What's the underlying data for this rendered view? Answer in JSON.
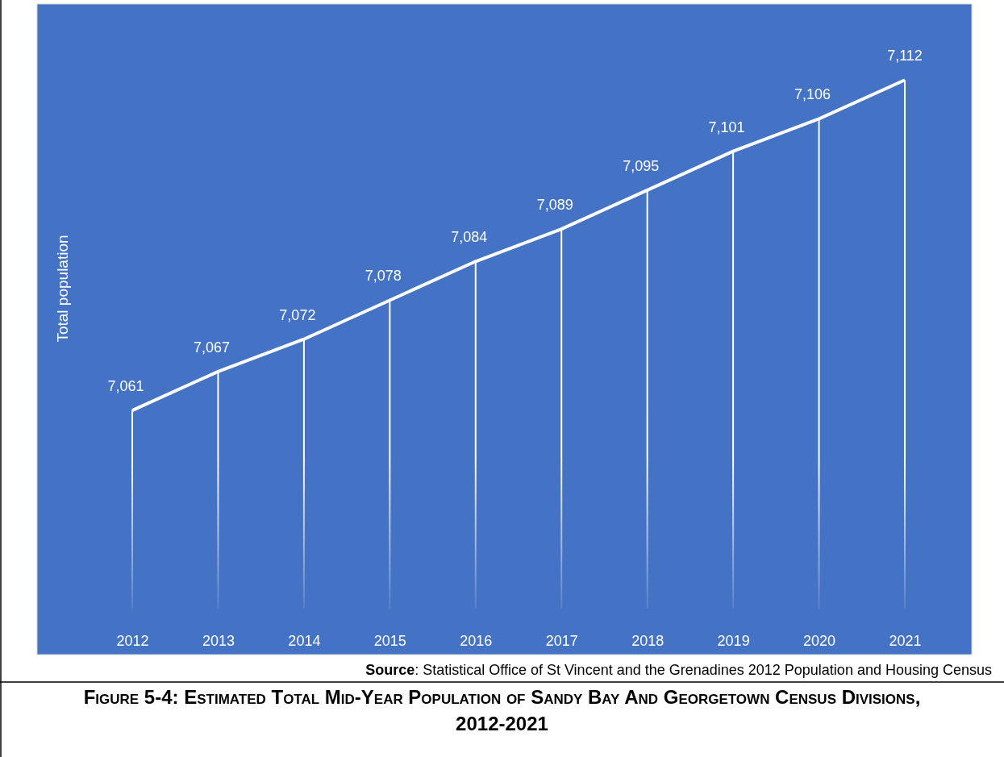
{
  "chart_data": {
    "type": "line",
    "title": "Figure 5-4: Estimated Total Mid-Year Population of Sandy Bay And Georgetown Census Divisions, 2012-2021",
    "ylabel": "Total population",
    "annotations": [
      "Source: Statistical Office of St Vincent and the Grenadines 2012 Population and Housing Census"
    ],
    "categories": [
      "2012",
      "2013",
      "2014",
      "2015",
      "2016",
      "2017",
      "2018",
      "2019",
      "2020",
      "2021"
    ],
    "series": [
      {
        "color": "#ffffff",
        "values": [
          7061,
          7067,
          7072,
          7078,
          7084,
          7089,
          7095,
          7101,
          7106,
          7112
        ],
        "value_labels": [
          "7,061",
          "7,067",
          "7,072",
          "7,078",
          "7,084",
          "7,089",
          "7,095",
          "7,101",
          "7,106",
          "7,112"
        ]
      }
    ],
    "grid": "x",
    "marker": "none",
    "line_style": "solid"
  }
}
